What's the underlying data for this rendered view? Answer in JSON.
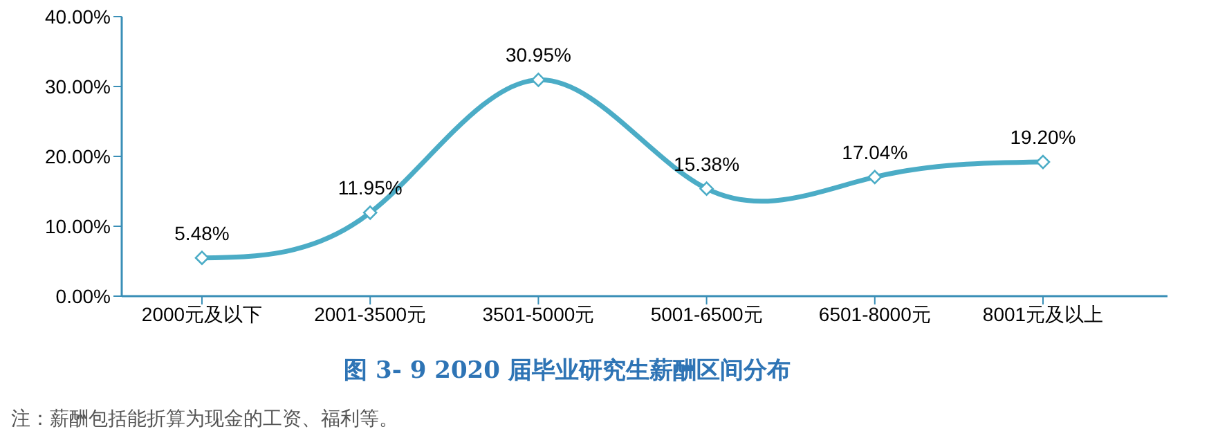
{
  "chart_data": {
    "type": "line",
    "title": "图 3- 9    2020 届毕业研究生薪酬区间分布",
    "annotations": [
      "注：薪酬包括能折算为现金的工资、福利等。"
    ],
    "categories": [
      "2000元及以下",
      "2001-3500元",
      "3501-5000元",
      "5001-6500元",
      "6501-8000元",
      "8001元及以上"
    ],
    "series": [
      {
        "color": "#4bacc6",
        "values": [
          5.48,
          11.95,
          30.95,
          15.38,
          17.04,
          19.2
        ],
        "value_labels": [
          "5.48%",
          "11.95%",
          "30.95%",
          "15.38%",
          "17.04%",
          "19.20%"
        ]
      }
    ],
    "ylim": [
      0,
      40
    ],
    "yticks": [
      {
        "value": 0,
        "label": "0.00%"
      },
      {
        "value": 10,
        "label": "10.00%"
      },
      {
        "value": 20,
        "label": "20.00%"
      },
      {
        "value": 30,
        "label": "30.00%"
      },
      {
        "value": 40,
        "label": "40.00%"
      }
    ],
    "grid": false,
    "legend": false,
    "marker": "diamond",
    "line_style": "solid"
  }
}
